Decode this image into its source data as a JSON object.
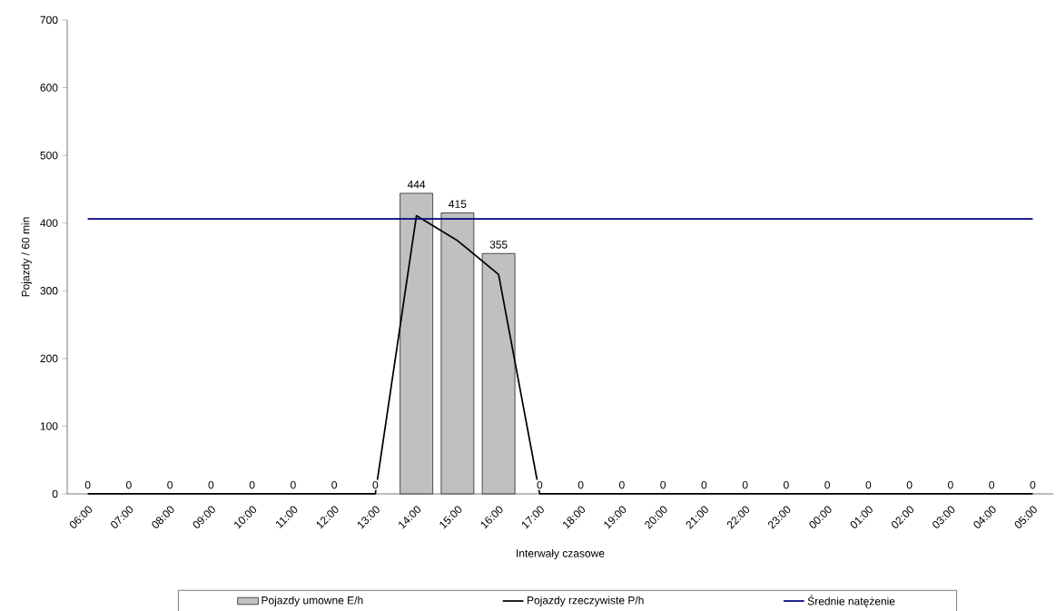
{
  "chart_data": {
    "type": "bar",
    "xlabel": "Interwały czasowe",
    "ylabel": "Pojazdy / 60 min",
    "categories": [
      "06:00",
      "07:00",
      "08:00",
      "09:00",
      "10:00",
      "11:00",
      "12:00",
      "13:00",
      "14:00",
      "15:00",
      "16:00",
      "17:00",
      "18:00",
      "19:00",
      "20:00",
      "21:00",
      "22:00",
      "23:00",
      "00:00",
      "01:00",
      "02:00",
      "03:00",
      "04:00",
      "05:00"
    ],
    "series": [
      {
        "name": "Pojazdy umowne E/h",
        "color": "#c0c0c0",
        "values": [
          0,
          0,
          0,
          0,
          0,
          0,
          0,
          0,
          444,
          415,
          355,
          0,
          0,
          0,
          0,
          0,
          0,
          0,
          0,
          0,
          0,
          0,
          0,
          0
        ],
        "value_labels": [
          "0",
          "0",
          "0",
          "0",
          "0",
          "0",
          "0",
          "0",
          "444",
          "415",
          "355",
          "0",
          "0",
          "0",
          "0",
          "0",
          "0",
          "0",
          "0",
          "0",
          "0",
          "0",
          "0",
          "0"
        ]
      },
      {
        "name": "Pojazdy rzeczywiste P/h",
        "type": "line",
        "color": "#000000",
        "values": [
          0,
          0,
          0,
          0,
          0,
          0,
          0,
          0,
          411,
          374,
          324,
          0,
          0,
          0,
          0,
          0,
          0,
          0,
          0,
          0,
          0,
          0,
          0,
          0
        ]
      },
      {
        "name": "Średnie natężenie",
        "type": "line",
        "color": "#000080",
        "values": [
          406,
          406,
          406,
          406,
          406,
          406,
          406,
          406,
          406,
          406,
          406,
          406,
          406,
          406,
          406,
          406,
          406,
          406,
          406,
          406,
          406,
          406,
          406,
          406
        ]
      }
    ],
    "ylim": [
      0,
      700
    ],
    "yticks": [
      0,
      100,
      200,
      300,
      400,
      500,
      600,
      700
    ],
    "grid": false,
    "legend": "bottom",
    "marker": "none"
  }
}
